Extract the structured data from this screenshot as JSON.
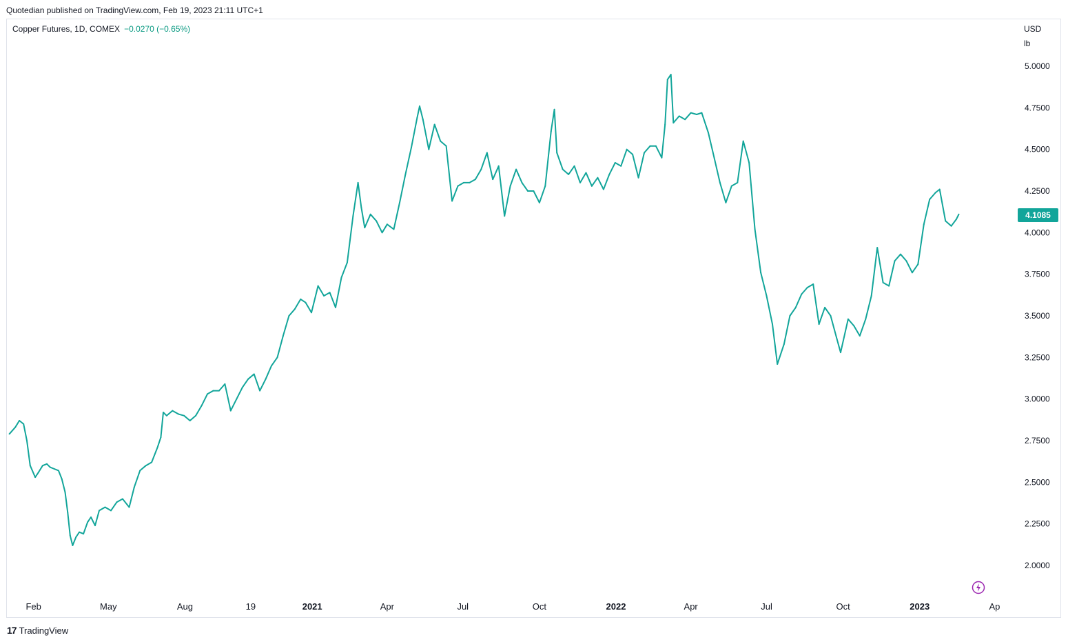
{
  "header": {
    "published": "Quotedian published on TradingView.com, Feb 19, 2023 21:11 UTC+1"
  },
  "legend": {
    "symbol": "Copper Futures, 1D, COMEX",
    "change": "−0.0270 (−0.65%)"
  },
  "footer": {
    "brand": "TradingView"
  },
  "colors": {
    "line": "#12a59a",
    "badge": "#12a59a",
    "change_text": "#089981"
  },
  "icons": {
    "lightning": "lightning-icon",
    "logo": "tradingview-logo-icon"
  },
  "chart_data": {
    "type": "line",
    "currency_unit": "USD",
    "price_unit": "lb",
    "last_price": "4.1085",
    "ylim": [
      1.85,
      5.15
    ],
    "y_ticks": [
      "5.0000",
      "4.7500",
      "4.5000",
      "4.2500",
      "4.0000",
      "3.7500",
      "3.5000",
      "3.2500",
      "3.0000",
      "2.7500",
      "2.5000",
      "2.2500",
      "2.0000"
    ],
    "x_ticks": [
      {
        "label": "Feb",
        "date": "2020-02-01",
        "bold": false
      },
      {
        "label": "May",
        "date": "2020-05-01",
        "bold": false
      },
      {
        "label": "Aug",
        "date": "2020-08-01",
        "bold": false
      },
      {
        "label": "19",
        "date": "2020-10-19",
        "bold": false
      },
      {
        "label": "2021",
        "date": "2021-01-01",
        "bold": true
      },
      {
        "label": "Apr",
        "date": "2021-04-01",
        "bold": false
      },
      {
        "label": "Jul",
        "date": "2021-07-01",
        "bold": false
      },
      {
        "label": "Oct",
        "date": "2021-10-01",
        "bold": false
      },
      {
        "label": "2022",
        "date": "2022-01-01",
        "bold": true
      },
      {
        "label": "Apr",
        "date": "2022-04-01",
        "bold": false
      },
      {
        "label": "Jul",
        "date": "2022-07-01",
        "bold": false
      },
      {
        "label": "Oct",
        "date": "2022-10-01",
        "bold": false
      },
      {
        "label": "2023",
        "date": "2023-01-01",
        "bold": true
      },
      {
        "label": "Ap",
        "date": "2023-04-01",
        "bold": false
      }
    ],
    "series": [
      {
        "points": [
          [
            "2020-01-03",
            2.79
          ],
          [
            "2020-01-10",
            2.83
          ],
          [
            "2020-01-15",
            2.87
          ],
          [
            "2020-01-20",
            2.85
          ],
          [
            "2020-01-24",
            2.75
          ],
          [
            "2020-01-28",
            2.6
          ],
          [
            "2020-02-03",
            2.53
          ],
          [
            "2020-02-07",
            2.56
          ],
          [
            "2020-02-12",
            2.6
          ],
          [
            "2020-02-17",
            2.61
          ],
          [
            "2020-02-21",
            2.59
          ],
          [
            "2020-02-26",
            2.58
          ],
          [
            "2020-03-02",
            2.57
          ],
          [
            "2020-03-06",
            2.52
          ],
          [
            "2020-03-10",
            2.44
          ],
          [
            "2020-03-13",
            2.32
          ],
          [
            "2020-03-16",
            2.18
          ],
          [
            "2020-03-19",
            2.12
          ],
          [
            "2020-03-23",
            2.17
          ],
          [
            "2020-03-27",
            2.2
          ],
          [
            "2020-04-01",
            2.19
          ],
          [
            "2020-04-06",
            2.26
          ],
          [
            "2020-04-10",
            2.29
          ],
          [
            "2020-04-15",
            2.24
          ],
          [
            "2020-04-20",
            2.33
          ],
          [
            "2020-04-27",
            2.35
          ],
          [
            "2020-05-04",
            2.33
          ],
          [
            "2020-05-11",
            2.38
          ],
          [
            "2020-05-18",
            2.4
          ],
          [
            "2020-05-26",
            2.35
          ],
          [
            "2020-06-01",
            2.47
          ],
          [
            "2020-06-08",
            2.57
          ],
          [
            "2020-06-15",
            2.6
          ],
          [
            "2020-06-22",
            2.62
          ],
          [
            "2020-06-29",
            2.71
          ],
          [
            "2020-07-03",
            2.77
          ],
          [
            "2020-07-06",
            2.92
          ],
          [
            "2020-07-10",
            2.9
          ],
          [
            "2020-07-17",
            2.93
          ],
          [
            "2020-07-24",
            2.91
          ],
          [
            "2020-07-31",
            2.9
          ],
          [
            "2020-08-07",
            2.87
          ],
          [
            "2020-08-14",
            2.9
          ],
          [
            "2020-08-21",
            2.96
          ],
          [
            "2020-08-28",
            3.03
          ],
          [
            "2020-09-04",
            3.05
          ],
          [
            "2020-09-11",
            3.05
          ],
          [
            "2020-09-18",
            3.09
          ],
          [
            "2020-09-25",
            2.93
          ],
          [
            "2020-10-02",
            3.0
          ],
          [
            "2020-10-09",
            3.07
          ],
          [
            "2020-10-16",
            3.12
          ],
          [
            "2020-10-23",
            3.15
          ],
          [
            "2020-10-30",
            3.05
          ],
          [
            "2020-11-06",
            3.12
          ],
          [
            "2020-11-13",
            3.2
          ],
          [
            "2020-11-20",
            3.25
          ],
          [
            "2020-11-27",
            3.38
          ],
          [
            "2020-12-04",
            3.5
          ],
          [
            "2020-12-11",
            3.54
          ],
          [
            "2020-12-18",
            3.6
          ],
          [
            "2020-12-24",
            3.58
          ],
          [
            "2020-12-31",
            3.52
          ],
          [
            "2021-01-08",
            3.68
          ],
          [
            "2021-01-15",
            3.62
          ],
          [
            "2021-01-22",
            3.64
          ],
          [
            "2021-01-29",
            3.55
          ],
          [
            "2021-02-05",
            3.73
          ],
          [
            "2021-02-12",
            3.82
          ],
          [
            "2021-02-19",
            4.1
          ],
          [
            "2021-02-25",
            4.3
          ],
          [
            "2021-03-01",
            4.15
          ],
          [
            "2021-03-05",
            4.03
          ],
          [
            "2021-03-12",
            4.11
          ],
          [
            "2021-03-19",
            4.07
          ],
          [
            "2021-03-26",
            4.0
          ],
          [
            "2021-04-01",
            4.05
          ],
          [
            "2021-04-09",
            4.02
          ],
          [
            "2021-04-16",
            4.18
          ],
          [
            "2021-04-23",
            4.35
          ],
          [
            "2021-04-30",
            4.51
          ],
          [
            "2021-05-07",
            4.69
          ],
          [
            "2021-05-10",
            4.76
          ],
          [
            "2021-05-14",
            4.68
          ],
          [
            "2021-05-21",
            4.5
          ],
          [
            "2021-05-28",
            4.65
          ],
          [
            "2021-06-04",
            4.55
          ],
          [
            "2021-06-11",
            4.52
          ],
          [
            "2021-06-18",
            4.19
          ],
          [
            "2021-06-25",
            4.28
          ],
          [
            "2021-07-02",
            4.3
          ],
          [
            "2021-07-09",
            4.3
          ],
          [
            "2021-07-16",
            4.32
          ],
          [
            "2021-07-23",
            4.38
          ],
          [
            "2021-07-30",
            4.48
          ],
          [
            "2021-08-06",
            4.32
          ],
          [
            "2021-08-13",
            4.4
          ],
          [
            "2021-08-20",
            4.1
          ],
          [
            "2021-08-27",
            4.28
          ],
          [
            "2021-09-03",
            4.38
          ],
          [
            "2021-09-10",
            4.3
          ],
          [
            "2021-09-17",
            4.25
          ],
          [
            "2021-09-24",
            4.25
          ],
          [
            "2021-10-01",
            4.18
          ],
          [
            "2021-10-08",
            4.28
          ],
          [
            "2021-10-15",
            4.61
          ],
          [
            "2021-10-19",
            4.74
          ],
          [
            "2021-10-22",
            4.48
          ],
          [
            "2021-10-29",
            4.38
          ],
          [
            "2021-11-05",
            4.35
          ],
          [
            "2021-11-12",
            4.4
          ],
          [
            "2021-11-19",
            4.3
          ],
          [
            "2021-11-26",
            4.36
          ],
          [
            "2021-12-03",
            4.28
          ],
          [
            "2021-12-10",
            4.33
          ],
          [
            "2021-12-17",
            4.26
          ],
          [
            "2021-12-24",
            4.35
          ],
          [
            "2021-12-31",
            4.42
          ],
          [
            "2022-01-07",
            4.4
          ],
          [
            "2022-01-14",
            4.5
          ],
          [
            "2022-01-21",
            4.47
          ],
          [
            "2022-01-28",
            4.33
          ],
          [
            "2022-02-04",
            4.48
          ],
          [
            "2022-02-11",
            4.52
          ],
          [
            "2022-02-18",
            4.52
          ],
          [
            "2022-02-25",
            4.45
          ],
          [
            "2022-03-01",
            4.65
          ],
          [
            "2022-03-04",
            4.92
          ],
          [
            "2022-03-08",
            4.95
          ],
          [
            "2022-03-11",
            4.66
          ],
          [
            "2022-03-18",
            4.7
          ],
          [
            "2022-03-25",
            4.68
          ],
          [
            "2022-04-01",
            4.72
          ],
          [
            "2022-04-08",
            4.71
          ],
          [
            "2022-04-14",
            4.72
          ],
          [
            "2022-04-22",
            4.6
          ],
          [
            "2022-04-29",
            4.45
          ],
          [
            "2022-05-06",
            4.3
          ],
          [
            "2022-05-13",
            4.18
          ],
          [
            "2022-05-20",
            4.28
          ],
          [
            "2022-05-27",
            4.3
          ],
          [
            "2022-06-03",
            4.55
          ],
          [
            "2022-06-10",
            4.42
          ],
          [
            "2022-06-17",
            4.02
          ],
          [
            "2022-06-24",
            3.76
          ],
          [
            "2022-07-01",
            3.62
          ],
          [
            "2022-07-08",
            3.45
          ],
          [
            "2022-07-14",
            3.21
          ],
          [
            "2022-07-22",
            3.33
          ],
          [
            "2022-07-29",
            3.5
          ],
          [
            "2022-08-05",
            3.55
          ],
          [
            "2022-08-12",
            3.63
          ],
          [
            "2022-08-19",
            3.67
          ],
          [
            "2022-08-26",
            3.69
          ],
          [
            "2022-09-02",
            3.45
          ],
          [
            "2022-09-09",
            3.55
          ],
          [
            "2022-09-16",
            3.5
          ],
          [
            "2022-09-23",
            3.37
          ],
          [
            "2022-09-28",
            3.28
          ],
          [
            "2022-10-07",
            3.48
          ],
          [
            "2022-10-14",
            3.44
          ],
          [
            "2022-10-21",
            3.38
          ],
          [
            "2022-10-28",
            3.48
          ],
          [
            "2022-11-04",
            3.62
          ],
          [
            "2022-11-11",
            3.91
          ],
          [
            "2022-11-18",
            3.7
          ],
          [
            "2022-11-25",
            3.68
          ],
          [
            "2022-12-02",
            3.83
          ],
          [
            "2022-12-09",
            3.87
          ],
          [
            "2022-12-16",
            3.83
          ],
          [
            "2022-12-23",
            3.76
          ],
          [
            "2022-12-30",
            3.81
          ],
          [
            "2023-01-06",
            4.05
          ],
          [
            "2023-01-13",
            4.2
          ],
          [
            "2023-01-20",
            4.24
          ],
          [
            "2023-01-25",
            4.26
          ],
          [
            "2023-02-01",
            4.07
          ],
          [
            "2023-02-08",
            4.04
          ],
          [
            "2023-02-14",
            4.08
          ],
          [
            "2023-02-17",
            4.11
          ]
        ]
      }
    ]
  }
}
